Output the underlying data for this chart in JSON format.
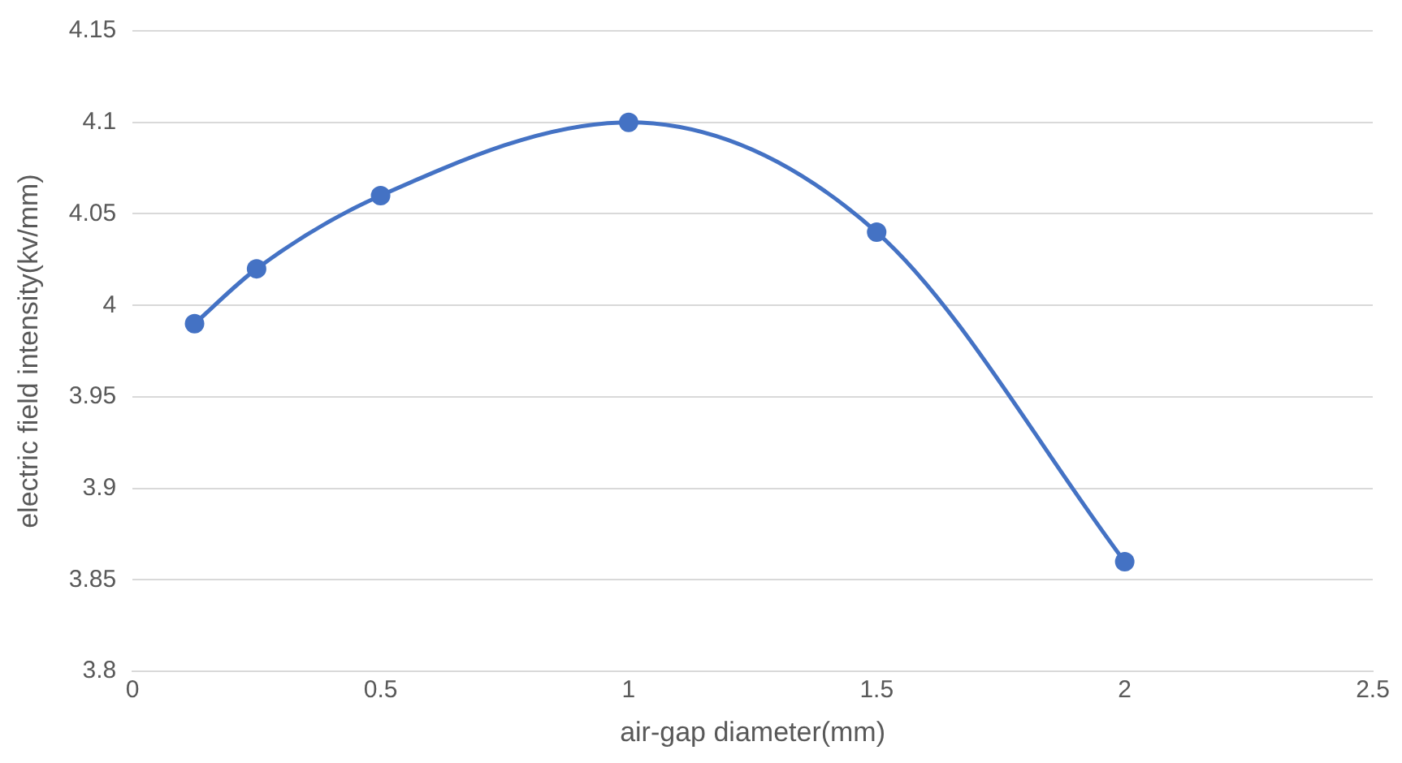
{
  "chart_data": {
    "type": "scatter",
    "xlabel": "air-gap diameter(mm)",
    "ylabel": "electric field intensity(kv/mm)",
    "x": [
      0.125,
      0.25,
      0.5,
      1,
      1.5,
      2
    ],
    "series": [
      {
        "type": "line",
        "color": "#4472c4",
        "values": [
          3.99,
          4.02,
          4.06,
          4.1,
          4.04,
          3.86
        ]
      }
    ],
    "xlim": [
      0,
      2.5
    ],
    "xticks": [
      0,
      0.5,
      1,
      1.5,
      2,
      2.5
    ],
    "ylim": [
      3.8,
      4.15
    ],
    "yticks": [
      3.8,
      3.85,
      3.9,
      3.95,
      4,
      4.05,
      4.1,
      4.15
    ],
    "grid": "y",
    "legend": false,
    "marker": "circle",
    "line_style": "solid"
  }
}
